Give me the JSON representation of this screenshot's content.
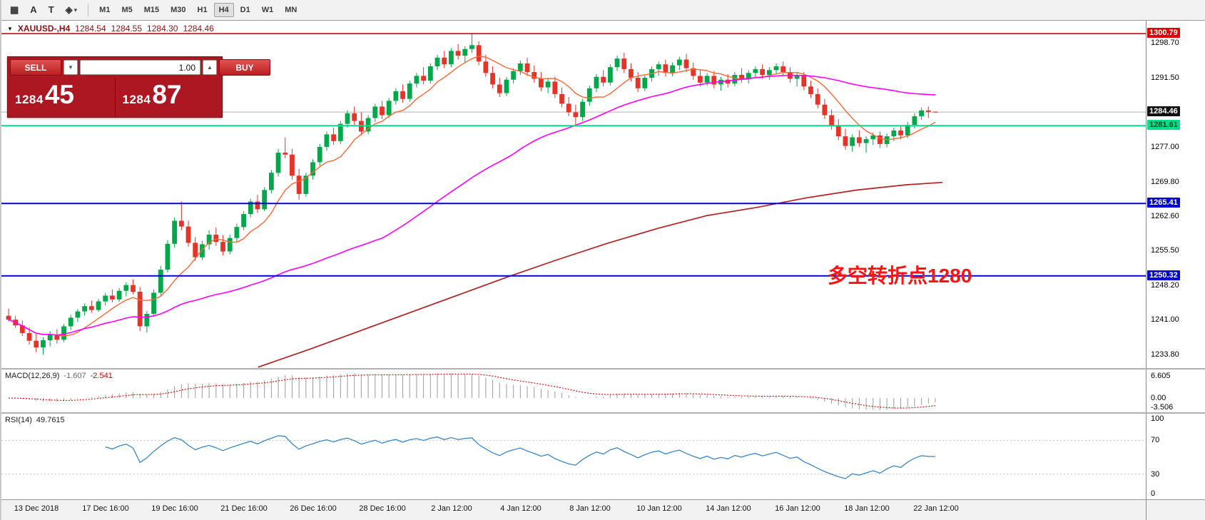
{
  "toolbar": {
    "tools": [
      {
        "name": "grid-tool",
        "glyph": "▦",
        "caret": false
      },
      {
        "name": "text-tool",
        "glyph": "A",
        "caret": false
      },
      {
        "name": "text-label-tool",
        "glyph": "T",
        "caret": false
      },
      {
        "name": "shapes-tool",
        "glyph": "◈",
        "caret": true
      }
    ],
    "timeframes": [
      "M1",
      "M5",
      "M15",
      "M30",
      "H1",
      "H4",
      "D1",
      "W1",
      "MN"
    ],
    "active_timeframe": "H4"
  },
  "symbol_info": {
    "symbol": "XAUUSD-,H4",
    "open": "1284.54",
    "high": "1284.55",
    "low": "1284.30",
    "close": "1284.46"
  },
  "trade_panel": {
    "sell_label": "SELL",
    "buy_label": "BUY",
    "volume": "1.00",
    "sell_price_small": "1284",
    "sell_price_big": "45",
    "buy_price_small": "1284",
    "buy_price_big": "87"
  },
  "annotation": {
    "text": "多空转折点1280",
    "color": "#ff1212"
  },
  "main_chart": {
    "price_top": 1303.5,
    "price_bottom": 1231.1,
    "axis_ticks": [
      1298.7,
      1291.5,
      1277.0,
      1269.8,
      1262.6,
      1255.5,
      1248.2,
      1241.0,
      1233.8
    ],
    "lines": [
      {
        "price": 1300.79,
        "label": "1300.79",
        "color": "#e00000",
        "width": 1.6,
        "tag_bg": "#e00000",
        "tag_fg": "#ffffff"
      },
      {
        "price": 1284.46,
        "label": "1284.46",
        "color": "#b4b4b4",
        "width": 1.0,
        "tag_bg": "#101010",
        "tag_fg": "#ffffff",
        "is_current": true
      },
      {
        "price": 1281.61,
        "label": "1281.61",
        "color": "#00de8c",
        "width": 2.0,
        "tag_bg": "#00de8c",
        "tag_fg": "#00451f"
      },
      {
        "price": 1265.41,
        "label": "1265.41",
        "color": "#0000d8",
        "width": 2.0,
        "tag_bg": "#0000d8",
        "tag_fg": "#ffffff"
      },
      {
        "price": 1250.32,
        "label": "1250.32",
        "color": "#0000d8",
        "width": 2.0,
        "tag_bg": "#0000d8",
        "tag_fg": "#ffffff"
      }
    ],
    "colors": {
      "up": "#00a84a",
      "down": "#e63327",
      "ma_fast": "#ff6633",
      "ma_mid": "#ff00ff",
      "ma_slow": "#b22222"
    },
    "ma_fast_period": 8,
    "ma_mid_period": 55,
    "ma_slow_points": [
      [
        360,
        1231.3
      ],
      [
        430,
        1234.9
      ],
      [
        500,
        1238.7
      ],
      [
        570,
        1242.5
      ],
      [
        640,
        1246.3
      ],
      [
        710,
        1250.1
      ],
      [
        780,
        1253.7
      ],
      [
        850,
        1257.1
      ],
      [
        920,
        1260.2
      ],
      [
        990,
        1262.9
      ],
      [
        1060,
        1264.6
      ],
      [
        1130,
        1266.6
      ],
      [
        1200,
        1268.2
      ],
      [
        1270,
        1269.3
      ],
      [
        1320,
        1269.8
      ]
    ],
    "candles": [
      [
        1242.0,
        1243.5,
        1240.8,
        1241.2
      ],
      [
        1241.2,
        1242.0,
        1239.5,
        1240.0
      ],
      [
        1240.0,
        1241.0,
        1237.8,
        1238.4
      ],
      [
        1238.4,
        1239.6,
        1236.0,
        1236.8
      ],
      [
        1236.8,
        1238.2,
        1234.4,
        1235.4
      ],
      [
        1235.4,
        1237.5,
        1233.9,
        1236.9
      ],
      [
        1236.9,
        1238.8,
        1235.6,
        1238.1
      ],
      [
        1238.1,
        1239.2,
        1236.2,
        1237.0
      ],
      [
        1237.0,
        1240.3,
        1236.5,
        1239.8
      ],
      [
        1239.8,
        1242.2,
        1239.0,
        1241.6
      ],
      [
        1241.6,
        1243.4,
        1240.7,
        1242.9
      ],
      [
        1242.9,
        1244.6,
        1242.0,
        1244.0
      ],
      [
        1244.0,
        1245.2,
        1242.6,
        1243.2
      ],
      [
        1243.2,
        1245.5,
        1242.8,
        1245.0
      ],
      [
        1245.0,
        1246.8,
        1244.2,
        1246.2
      ],
      [
        1246.2,
        1247.5,
        1244.8,
        1245.4
      ],
      [
        1245.4,
        1247.8,
        1244.9,
        1247.2
      ],
      [
        1247.2,
        1249.0,
        1246.0,
        1248.4
      ],
      [
        1248.4,
        1249.6,
        1246.5,
        1247.0
      ],
      [
        1247.0,
        1248.0,
        1238.8,
        1239.8
      ],
      [
        1239.8,
        1243.0,
        1238.5,
        1242.4
      ],
      [
        1242.4,
        1247.5,
        1241.8,
        1246.8
      ],
      [
        1246.8,
        1252.4,
        1246.2,
        1251.6
      ],
      [
        1251.6,
        1257.8,
        1251.0,
        1257.0
      ],
      [
        1257.0,
        1262.5,
        1256.2,
        1261.8
      ],
      [
        1261.8,
        1265.8,
        1259.8,
        1260.6
      ],
      [
        1260.6,
        1261.8,
        1256.4,
        1257.2
      ],
      [
        1257.2,
        1258.4,
        1253.4,
        1254.2
      ],
      [
        1254.2,
        1257.6,
        1253.6,
        1256.9
      ],
      [
        1256.9,
        1259.8,
        1255.8,
        1258.9
      ],
      [
        1258.9,
        1260.4,
        1256.6,
        1257.4
      ],
      [
        1257.4,
        1258.8,
        1254.6,
        1255.4
      ],
      [
        1255.4,
        1258.9,
        1254.8,
        1258.2
      ],
      [
        1258.2,
        1261.2,
        1257.4,
        1260.5
      ],
      [
        1260.5,
        1263.8,
        1259.8,
        1263.2
      ],
      [
        1263.2,
        1266.4,
        1262.5,
        1265.8
      ],
      [
        1265.8,
        1267.2,
        1263.4,
        1264.2
      ],
      [
        1264.2,
        1268.8,
        1263.8,
        1268.2
      ],
      [
        1268.2,
        1272.4,
        1267.5,
        1271.8
      ],
      [
        1271.8,
        1276.8,
        1271.0,
        1276.0
      ],
      [
        1276.0,
        1279.2,
        1274.8,
        1275.6
      ],
      [
        1275.6,
        1276.8,
        1270.4,
        1271.2
      ],
      [
        1271.2,
        1272.6,
        1266.2,
        1267.4
      ],
      [
        1267.4,
        1271.8,
        1266.8,
        1271.2
      ],
      [
        1271.2,
        1274.6,
        1270.4,
        1274.0
      ],
      [
        1274.0,
        1277.8,
        1273.2,
        1277.2
      ],
      [
        1277.2,
        1280.4,
        1276.4,
        1279.8
      ],
      [
        1279.8,
        1281.2,
        1277.6,
        1278.4
      ],
      [
        1278.4,
        1282.6,
        1277.8,
        1282.0
      ],
      [
        1282.0,
        1284.8,
        1281.2,
        1284.2
      ],
      [
        1284.2,
        1285.6,
        1281.8,
        1282.6
      ],
      [
        1282.6,
        1284.4,
        1279.6,
        1280.4
      ],
      [
        1280.4,
        1283.8,
        1279.8,
        1283.2
      ],
      [
        1283.2,
        1286.2,
        1282.4,
        1285.6
      ],
      [
        1285.6,
        1286.8,
        1283.0,
        1283.8
      ],
      [
        1283.8,
        1287.4,
        1283.2,
        1286.8
      ],
      [
        1286.8,
        1289.4,
        1286.0,
        1288.8
      ],
      [
        1288.8,
        1290.2,
        1286.4,
        1287.2
      ],
      [
        1287.2,
        1291.0,
        1286.6,
        1290.4
      ],
      [
        1290.4,
        1292.6,
        1289.6,
        1292.0
      ],
      [
        1292.0,
        1293.8,
        1290.2,
        1291.0
      ],
      [
        1291.0,
        1294.6,
        1290.4,
        1294.0
      ],
      [
        1294.0,
        1296.4,
        1293.2,
        1295.8
      ],
      [
        1295.8,
        1297.2,
        1293.6,
        1294.4
      ],
      [
        1294.4,
        1297.8,
        1293.8,
        1297.2
      ],
      [
        1297.2,
        1298.6,
        1295.4,
        1296.2
      ],
      [
        1296.2,
        1298.2,
        1294.8,
        1297.6
      ],
      [
        1297.6,
        1300.8,
        1296.8,
        1298.4
      ],
      [
        1298.4,
        1299.2,
        1294.2,
        1295.0
      ],
      [
        1295.0,
        1296.4,
        1291.8,
        1292.6
      ],
      [
        1292.6,
        1294.0,
        1289.4,
        1290.2
      ],
      [
        1290.2,
        1291.6,
        1287.6,
        1288.4
      ],
      [
        1288.4,
        1291.8,
        1287.8,
        1291.2
      ],
      [
        1291.2,
        1293.6,
        1290.4,
        1293.0
      ],
      [
        1293.0,
        1295.2,
        1292.2,
        1294.6
      ],
      [
        1294.6,
        1295.8,
        1292.0,
        1292.8
      ],
      [
        1292.8,
        1294.2,
        1290.6,
        1291.4
      ],
      [
        1291.4,
        1292.8,
        1288.8,
        1289.6
      ],
      [
        1289.6,
        1291.4,
        1288.4,
        1290.8
      ],
      [
        1290.8,
        1291.8,
        1287.4,
        1288.2
      ],
      [
        1288.2,
        1289.6,
        1285.4,
        1286.2
      ],
      [
        1286.2,
        1287.6,
        1283.6,
        1284.4
      ],
      [
        1284.4,
        1286.0,
        1281.4,
        1283.4
      ],
      [
        1283.4,
        1287.2,
        1282.6,
        1286.6
      ],
      [
        1286.6,
        1290.0,
        1285.8,
        1289.4
      ],
      [
        1289.4,
        1292.4,
        1288.6,
        1291.8
      ],
      [
        1291.8,
        1293.2,
        1289.8,
        1290.6
      ],
      [
        1290.6,
        1294.4,
        1290.0,
        1293.8
      ],
      [
        1293.8,
        1296.2,
        1293.0,
        1295.6
      ],
      [
        1295.6,
        1296.8,
        1292.6,
        1293.4
      ],
      [
        1293.4,
        1294.6,
        1290.8,
        1291.6
      ],
      [
        1291.6,
        1292.8,
        1288.6,
        1289.4
      ],
      [
        1289.4,
        1292.2,
        1288.8,
        1291.6
      ],
      [
        1291.6,
        1294.0,
        1290.8,
        1293.4
      ],
      [
        1293.4,
        1295.0,
        1292.0,
        1294.4
      ],
      [
        1294.4,
        1295.4,
        1291.8,
        1292.6
      ],
      [
        1292.6,
        1294.8,
        1291.9,
        1294.2
      ],
      [
        1294.2,
        1296.0,
        1293.2,
        1295.4
      ],
      [
        1295.4,
        1296.6,
        1292.8,
        1293.6
      ],
      [
        1293.6,
        1294.8,
        1291.2,
        1292.0
      ],
      [
        1292.0,
        1293.4,
        1289.8,
        1290.6
      ],
      [
        1290.6,
        1292.6,
        1289.9,
        1292.0
      ],
      [
        1292.0,
        1293.0,
        1289.4,
        1290.2
      ],
      [
        1290.2,
        1291.8,
        1288.9,
        1291.2
      ],
      [
        1291.2,
        1292.4,
        1289.6,
        1290.4
      ],
      [
        1290.4,
        1292.8,
        1289.8,
        1292.2
      ],
      [
        1292.2,
        1293.6,
        1290.6,
        1291.4
      ],
      [
        1291.4,
        1293.2,
        1290.4,
        1292.6
      ],
      [
        1292.6,
        1294.0,
        1291.6,
        1293.4
      ],
      [
        1293.4,
        1294.4,
        1291.4,
        1292.2
      ],
      [
        1292.2,
        1293.8,
        1291.2,
        1293.2
      ],
      [
        1293.2,
        1294.6,
        1292.2,
        1294.0
      ],
      [
        1294.0,
        1295.0,
        1292.0,
        1292.8
      ],
      [
        1292.8,
        1293.8,
        1290.6,
        1291.4
      ],
      [
        1291.4,
        1292.6,
        1289.8,
        1292.0
      ],
      [
        1292.0,
        1292.8,
        1289.0,
        1289.8
      ],
      [
        1289.8,
        1291.0,
        1287.4,
        1288.2
      ],
      [
        1288.2,
        1289.4,
        1285.2,
        1286.0
      ],
      [
        1286.0,
        1287.2,
        1283.0,
        1283.8
      ],
      [
        1283.8,
        1285.0,
        1280.8,
        1281.6
      ],
      [
        1281.6,
        1283.0,
        1278.6,
        1279.4
      ],
      [
        1279.4,
        1281.0,
        1276.6,
        1277.4
      ],
      [
        1277.4,
        1279.8,
        1276.2,
        1279.2
      ],
      [
        1279.2,
        1280.6,
        1277.2,
        1278.0
      ],
      [
        1278.0,
        1279.4,
        1276.0,
        1278.8
      ],
      [
        1278.8,
        1280.2,
        1277.6,
        1279.6
      ],
      [
        1279.6,
        1280.4,
        1277.0,
        1277.8
      ],
      [
        1277.8,
        1280.0,
        1277.1,
        1279.4
      ],
      [
        1279.4,
        1281.2,
        1278.4,
        1280.6
      ],
      [
        1280.6,
        1281.6,
        1278.8,
        1279.6
      ],
      [
        1279.6,
        1282.4,
        1279.0,
        1281.8
      ],
      [
        1281.8,
        1284.2,
        1281.0,
        1283.6
      ],
      [
        1283.6,
        1285.4,
        1282.8,
        1284.8
      ],
      [
        1284.8,
        1285.6,
        1283.2,
        1284.5
      ],
      [
        1284.54,
        1284.55,
        1284.3,
        1284.46
      ]
    ]
  },
  "macd": {
    "label": "MACD(12,26,9)",
    "value_main": "-1.607",
    "value_signal": "-2.541",
    "axis": [
      "6.605",
      "0.00",
      "-3.506"
    ],
    "colors": {
      "histogram": "#9a9a9a",
      "signal": "#dd0000"
    }
  },
  "rsi": {
    "label": "RSI(14)",
    "value": "49.7615",
    "axis": [
      "100",
      "70",
      "30",
      "0"
    ],
    "levels": [
      70,
      30
    ],
    "color": "#3a87c8"
  },
  "time_axis": [
    "13 Dec 2018",
    "17 Dec 16:00",
    "19 Dec 16:00",
    "21 Dec 16:00",
    "26 Dec 16:00",
    "28 Dec 16:00",
    "2 Jan 12:00",
    "4 Jan 12:00",
    "8 Jan 12:00",
    "10 Jan 12:00",
    "14 Jan 12:00",
    "16 Jan 12:00",
    "18 Jan 12:00",
    "22 Jan 12:00"
  ]
}
